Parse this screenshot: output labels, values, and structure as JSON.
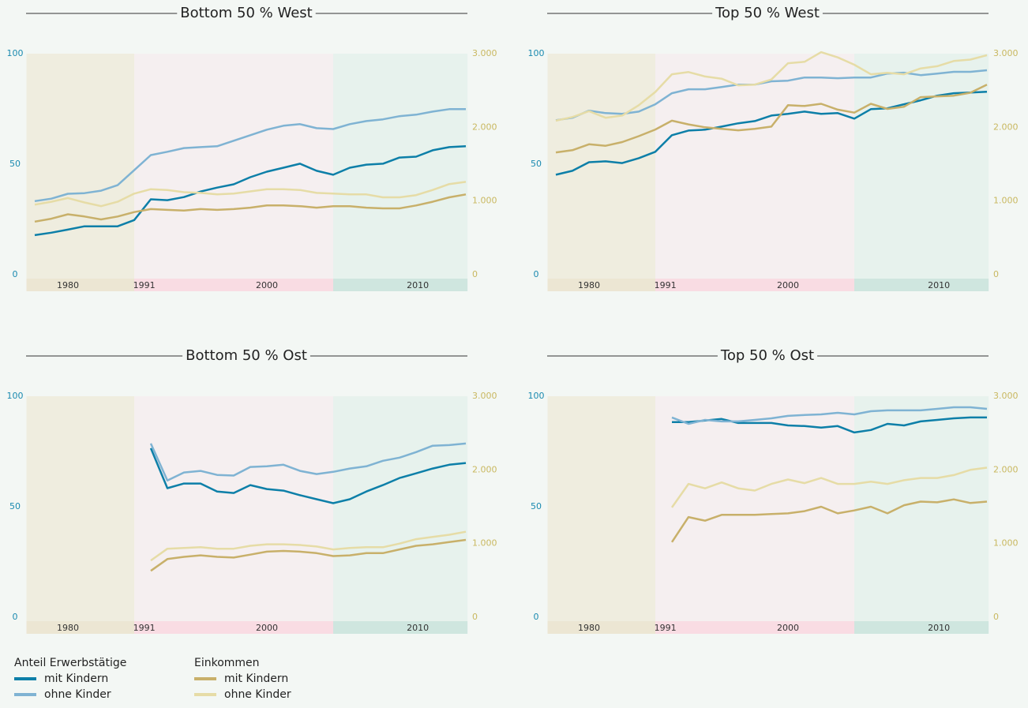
{
  "legend": {
    "groups": [
      {
        "title": "Anteil Erwerbstätige",
        "axis": "y",
        "items": [
          {
            "name": "mit Kindern",
            "color": "#0d7fa8"
          },
          {
            "name": "ohne Kinder",
            "color": "#7fb3d3"
          }
        ]
      },
      {
        "title": "Einkommen",
        "axis": "y2",
        "items": [
          {
            "name": "mit Kindern",
            "color": "#c8b06a"
          },
          {
            "name": "ohne Kinder",
            "color": "#e6dca6"
          }
        ]
      }
    ]
  },
  "eras": {
    "bands": [
      {
        "from": -0.5,
        "to": 6,
        "color": "#efeddf",
        "strip": "#ece6d3"
      },
      {
        "from": 6,
        "to": 18,
        "color": "#f5eff0",
        "strip": "#f9dce3"
      },
      {
        "from": 18,
        "to": 26.1,
        "color": "#e7f2ed",
        "strip": "#cfe6df"
      }
    ],
    "labels": [
      {
        "text": "1980",
        "at": 2
      },
      {
        "text": "1991",
        "at": 6.6
      },
      {
        "text": "2000",
        "at": 14
      },
      {
        "text": "2010",
        "at": 23.1
      }
    ]
  },
  "chart_data": [
    {
      "type": "line",
      "title": "Bottom 50 % West",
      "ylim": [
        0,
        100
      ],
      "yticks": [
        0,
        50,
        100
      ],
      "y2lim": [
        0,
        3000
      ],
      "y2ticks": [
        0,
        {
          "value": 1000,
          "label": "1.000"
        },
        {
          "value": 2000,
          "label": "2.000"
        },
        {
          "value": 3000,
          "label": "3.000"
        }
      ],
      "series": [
        {
          "values": [
            17.9,
            19.0,
            20.4,
            21.9,
            21.9,
            21.9,
            24.7,
            34.1,
            33.7,
            35.1,
            37.6,
            39.4,
            40.9,
            44.1,
            46.6,
            48.4,
            50.2,
            47.0,
            45.2,
            48.4,
            49.8,
            50.2,
            53.0,
            53.4,
            56.3,
            57.7,
            58.1
          ]
        },
        {
          "values": [
            33.3,
            34.4,
            36.6,
            36.9,
            38.0,
            40.5,
            47.3,
            54.1,
            55.6,
            57.3,
            57.7,
            58.1,
            60.6,
            63.1,
            65.6,
            67.4,
            68.1,
            66.3,
            65.9,
            68.1,
            69.5,
            70.3,
            71.7,
            72.4,
            73.8,
            74.9,
            74.9
          ]
        },
        {
          "values": [
            720,
            760,
            820,
            790,
            750,
            790,
            850,
            890,
            880,
            870,
            890,
            880,
            890,
            910,
            940,
            940,
            930,
            910,
            930,
            930,
            910,
            900,
            900,
            940,
            990,
            1050,
            1090
          ]
        },
        {
          "values": [
            950,
            990,
            1040,
            980,
            930,
            990,
            1100,
            1160,
            1150,
            1120,
            1110,
            1090,
            1100,
            1130,
            1160,
            1160,
            1150,
            1110,
            1100,
            1090,
            1090,
            1050,
            1050,
            1080,
            1150,
            1230,
            1260
          ]
        }
      ]
    },
    {
      "type": "line",
      "title": "Top 50 % West",
      "ylim": [
        0,
        100
      ],
      "yticks": [
        0,
        50,
        100
      ],
      "y2lim": [
        0,
        3000
      ],
      "y2ticks": [
        0,
        {
          "value": 1000,
          "label": "1.000"
        },
        {
          "value": 2000,
          "label": "2.000"
        },
        {
          "value": 3000,
          "label": "3.000"
        }
      ],
      "series": [
        {
          "values": [
            45.2,
            47.0,
            50.9,
            51.3,
            50.5,
            52.7,
            55.6,
            63.1,
            65.2,
            65.6,
            67.0,
            68.5,
            69.5,
            72.0,
            72.8,
            73.8,
            72.8,
            73.1,
            70.6,
            74.9,
            75.3,
            77.1,
            78.9,
            81.0,
            82.1,
            82.4,
            82.8
          ]
        },
        {
          "values": [
            69.9,
            71.0,
            74.2,
            73.1,
            72.8,
            73.8,
            77.1,
            82.1,
            83.9,
            83.9,
            84.9,
            86.0,
            86.0,
            87.5,
            87.8,
            89.2,
            89.2,
            88.9,
            89.2,
            89.2,
            91.0,
            91.4,
            90.3,
            91.0,
            91.8,
            91.8,
            92.5
          ]
        },
        {
          "values": [
            1660,
            1690,
            1770,
            1750,
            1800,
            1880,
            1970,
            2090,
            2040,
            2000,
            1980,
            1960,
            1980,
            2010,
            2300,
            2290,
            2320,
            2240,
            2200,
            2320,
            2250,
            2280,
            2410,
            2420,
            2430,
            2470,
            2580
          ]
        },
        {
          "values": [
            2090,
            2140,
            2220,
            2130,
            2160,
            2300,
            2480,
            2720,
            2750,
            2690,
            2660,
            2570,
            2580,
            2650,
            2870,
            2890,
            3020,
            2950,
            2850,
            2720,
            2740,
            2720,
            2800,
            2830,
            2900,
            2920,
            2980
          ]
        }
      ]
    },
    {
      "type": "line",
      "title": "Bottom 50 % Ost",
      "ylim": [
        0,
        100
      ],
      "yticks": [
        0,
        50,
        100
      ],
      "y2lim": [
        0,
        3000
      ],
      "y2ticks": [
        0,
        {
          "value": 1000,
          "label": "1.000"
        },
        {
          "value": 2000,
          "label": "2.000"
        },
        {
          "value": 3000,
          "label": "3.000"
        }
      ],
      "series": [
        {
          "values": [
            null,
            null,
            null,
            null,
            null,
            null,
            null,
            76.5,
            58.4,
            60.5,
            60.5,
            56.9,
            56.2,
            59.8,
            58.0,
            57.3,
            55.2,
            53.4,
            51.6,
            53.4,
            56.9,
            59.8,
            63.0,
            65.1,
            67.3,
            69.0,
            69.8
          ]
        },
        {
          "values": [
            null,
            null,
            null,
            null,
            null,
            null,
            null,
            78.6,
            61.9,
            65.5,
            66.2,
            64.4,
            64.1,
            68.0,
            68.3,
            69.0,
            66.2,
            64.8,
            65.8,
            67.3,
            68.3,
            70.8,
            72.2,
            74.7,
            77.6,
            77.9,
            78.6
          ]
        },
        {
          "values": [
            null,
            null,
            null,
            null,
            null,
            null,
            null,
            630,
            790,
            820,
            840,
            820,
            810,
            850,
            890,
            900,
            890,
            870,
            830,
            840,
            870,
            870,
            920,
            970,
            990,
            1020,
            1050
          ]
        },
        {
          "values": [
            null,
            null,
            null,
            null,
            null,
            null,
            null,
            770,
            930,
            940,
            950,
            930,
            930,
            970,
            990,
            990,
            980,
            960,
            920,
            940,
            950,
            950,
            1000,
            1060,
            1090,
            1120,
            1160
          ]
        }
      ]
    },
    {
      "type": "line",
      "title": "Top 50 % Ost",
      "ylim": [
        0,
        100
      ],
      "yticks": [
        0,
        50,
        100
      ],
      "y2lim": [
        0,
        3000
      ],
      "y2ticks": [
        0,
        {
          "value": 1000,
          "label": "1.000"
        },
        {
          "value": 2000,
          "label": "2.000"
        },
        {
          "value": 3000,
          "label": "3.000"
        }
      ],
      "series": [
        {
          "values": [
            null,
            null,
            null,
            null,
            null,
            null,
            null,
            88.3,
            88.3,
            89.0,
            89.7,
            87.9,
            87.9,
            87.9,
            86.8,
            86.5,
            85.8,
            86.5,
            83.6,
            84.7,
            87.5,
            86.8,
            88.6,
            89.3,
            90.0,
            90.4,
            90.4
          ]
        },
        {
          "values": [
            null,
            null,
            null,
            null,
            null,
            null,
            null,
            90.4,
            87.5,
            89.3,
            88.6,
            88.6,
            89.3,
            90.0,
            91.1,
            91.5,
            91.8,
            92.5,
            91.8,
            93.2,
            93.6,
            93.6,
            93.6,
            94.3,
            95.0,
            95.0,
            94.3
          ]
        },
        {
          "values": [
            null,
            null,
            null,
            null,
            null,
            null,
            null,
            1020,
            1360,
            1310,
            1390,
            1390,
            1390,
            1400,
            1410,
            1440,
            1500,
            1410,
            1450,
            1500,
            1410,
            1520,
            1570,
            1560,
            1600,
            1550,
            1570
          ]
        },
        {
          "values": [
            null,
            null,
            null,
            null,
            null,
            null,
            null,
            1490,
            1810,
            1750,
            1830,
            1750,
            1720,
            1810,
            1870,
            1820,
            1890,
            1810,
            1810,
            1840,
            1810,
            1860,
            1890,
            1890,
            1930,
            2000,
            2030
          ]
        }
      ]
    }
  ]
}
